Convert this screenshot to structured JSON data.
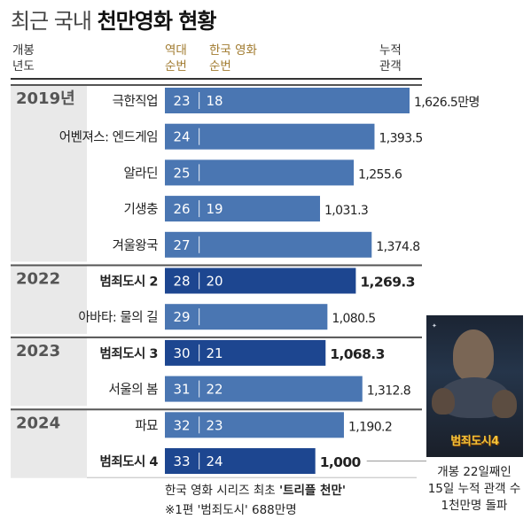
{
  "title": {
    "light": "최근 국내",
    "bold": "천만영화 현황"
  },
  "headers": {
    "year": [
      "개봉",
      "년도"
    ],
    "rank_all": [
      "역대",
      "순번"
    ],
    "rank_korean": [
      "한국 영화",
      "순번"
    ],
    "audience": [
      "누적",
      "관객"
    ]
  },
  "colors": {
    "bar_light": "#4a76b2",
    "bar_dark": "#1d4690",
    "year_band": "#e9e9e9",
    "year_text": "#555555",
    "rank_header": "#a07a2e"
  },
  "chart_data": {
    "type": "bar",
    "orientation": "horizontal",
    "unit": "만명",
    "xlim": [
      0,
      1700
    ],
    "years": [
      {
        "label": "2019년",
        "rows": [
          0,
          4
        ]
      },
      {
        "label": "2022",
        "rows": [
          5,
          6
        ]
      },
      {
        "label": "2023",
        "rows": [
          7,
          8
        ]
      },
      {
        "label": "2024",
        "rows": [
          9,
          10
        ]
      }
    ],
    "rows": [
      {
        "movie": "극한직업",
        "rank_all": "23",
        "rank_korean": "18",
        "audience": 1626.5,
        "label": "1,626.5만명",
        "highlight": false
      },
      {
        "movie": "어벤져스: 엔드게임",
        "rank_all": "24",
        "rank_korean": "",
        "audience": 1393.5,
        "label": "1,393.5",
        "highlight": false
      },
      {
        "movie": "알라딘",
        "rank_all": "25",
        "rank_korean": "",
        "audience": 1255.6,
        "label": "1,255.6",
        "highlight": false
      },
      {
        "movie": "기생충",
        "rank_all": "26",
        "rank_korean": "19",
        "audience": 1031.3,
        "label": "1,031.3",
        "highlight": false
      },
      {
        "movie": "겨울왕국",
        "rank_all": "27",
        "rank_korean": "",
        "audience": 1374.8,
        "label": "1,374.8",
        "highlight": false
      },
      {
        "movie": "범죄도시 2",
        "rank_all": "28",
        "rank_korean": "20",
        "audience": 1269.3,
        "label": "1,269.3",
        "highlight": true
      },
      {
        "movie": "아바타: 물의 길",
        "rank_all": "29",
        "rank_korean": "",
        "audience": 1080.5,
        "label": "1,080.5",
        "highlight": false
      },
      {
        "movie": "범죄도시 3",
        "rank_all": "30",
        "rank_korean": "21",
        "audience": 1068.3,
        "label": "1,068.3",
        "highlight": true
      },
      {
        "movie": "서울의 봄",
        "rank_all": "31",
        "rank_korean": "22",
        "audience": 1312.8,
        "label": "1,312.8",
        "highlight": false
      },
      {
        "movie": "파묘",
        "rank_all": "32",
        "rank_korean": "23",
        "audience": 1190.2,
        "label": "1,190.2",
        "highlight": false
      },
      {
        "movie": "범죄도시 4",
        "rank_all": "33",
        "rank_korean": "24",
        "audience": 1000,
        "label": "1,000",
        "highlight": true
      }
    ]
  },
  "footnote": {
    "line1_prefix": "한국 영화 시리즈 최초 ",
    "line1_bold": "'트리플 천만'",
    "line2": "※1편 '범죄도시' 688만명"
  },
  "poster": {
    "title": "범죄도시4"
  },
  "side_note": [
    "개봉 22일째인",
    "15일 누적 관객 수",
    "1천만명 돌파"
  ]
}
